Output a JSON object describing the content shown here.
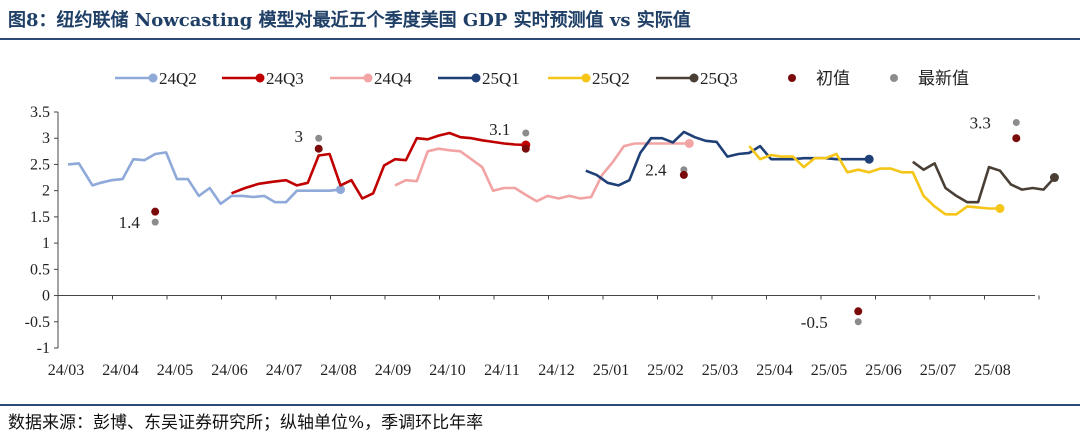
{
  "header": {
    "title": "图8：纽约联储 Nowcasting 模型对最近五个季度美国 GDP 实时预测值 vs 实际值"
  },
  "footer": {
    "source": "数据来源：彭博、东吴证券研究所；纵轴单位%，季调环比年率"
  },
  "chart_data": {
    "type": "line",
    "title": "",
    "xlabel": "",
    "ylabel": "",
    "ylim": [
      -1,
      3.5
    ],
    "yticks": [
      "-1",
      "-0.5",
      "0",
      "0.5",
      "1",
      "1.5",
      "2",
      "2.5",
      "3",
      "3.5"
    ],
    "x_categories": [
      "24/03",
      "24/04",
      "24/05",
      "24/06",
      "24/07",
      "24/08",
      "24/09",
      "24/10",
      "24/11",
      "24/12",
      "25/01",
      "25/02",
      "25/03",
      "25/04",
      "25/05",
      "25/06",
      "25/07",
      "25/08"
    ],
    "grid": false,
    "legend_position": "top",
    "series": [
      {
        "name": "24Q2",
        "color": "#8fa9d9",
        "end_marker": true,
        "x": [
          0,
          0.2,
          0.45,
          0.6,
          0.8,
          1.0,
          1.2,
          1.4,
          1.6,
          1.8,
          2.0,
          2.2,
          2.4,
          2.6,
          2.8,
          3.0,
          3.2,
          3.4,
          3.6,
          3.8,
          4.0,
          4.2,
          4.4,
          4.6,
          4.8,
          5.0
        ],
        "values": [
          2.5,
          2.52,
          2.1,
          2.15,
          2.2,
          2.22,
          2.6,
          2.58,
          2.7,
          2.73,
          2.22,
          2.22,
          1.9,
          2.05,
          1.75,
          1.9,
          1.9,
          1.88,
          1.9,
          1.78,
          1.78,
          2.0,
          2.0,
          2.0,
          2.0,
          2.02
        ]
      },
      {
        "name": "24Q3",
        "color": "#c00000",
        "end_marker": true,
        "x": [
          3.0,
          3.25,
          3.5,
          3.75,
          4.0,
          4.2,
          4.4,
          4.6,
          4.8,
          5.0,
          5.2,
          5.4,
          5.6,
          5.8,
          6.0,
          6.2,
          6.4,
          6.6,
          6.8,
          7.0,
          7.2,
          7.4,
          7.6,
          7.8,
          8.0,
          8.2,
          8.4
        ],
        "values": [
          1.95,
          2.05,
          2.13,
          2.17,
          2.2,
          2.1,
          2.15,
          2.67,
          2.7,
          2.1,
          2.2,
          1.85,
          1.95,
          2.48,
          2.6,
          2.58,
          3.0,
          2.98,
          3.05,
          3.1,
          3.02,
          3.0,
          2.96,
          2.93,
          2.9,
          2.88,
          2.87
        ]
      },
      {
        "name": "24Q4",
        "color": "#f2a3a3",
        "end_marker": true,
        "x": [
          6.0,
          6.2,
          6.4,
          6.6,
          6.8,
          7.0,
          7.2,
          7.4,
          7.6,
          7.8,
          8.0,
          8.2,
          8.4,
          8.6,
          8.8,
          9.0,
          9.2,
          9.4,
          9.6,
          9.8,
          10.0,
          10.2,
          10.4,
          10.6,
          10.8,
          11.0,
          11.2,
          11.4
        ],
        "values": [
          2.1,
          2.2,
          2.18,
          2.75,
          2.8,
          2.77,
          2.75,
          2.6,
          2.45,
          2.0,
          2.05,
          2.05,
          1.92,
          1.8,
          1.9,
          1.85,
          1.9,
          1.85,
          1.88,
          2.3,
          2.55,
          2.85,
          2.9,
          2.9,
          2.9,
          2.9,
          2.9,
          2.9
        ]
      },
      {
        "name": "25Q1",
        "color": "#1f3f77",
        "end_marker": true,
        "x": [
          9.5,
          9.7,
          9.9,
          10.1,
          10.3,
          10.5,
          10.7,
          10.9,
          11.1,
          11.3,
          11.5,
          11.7,
          11.9,
          12.1,
          12.3,
          12.5,
          12.7,
          12.9,
          13.1,
          13.3,
          13.5,
          13.7,
          13.9,
          14.1,
          14.3,
          14.5,
          14.7
        ],
        "values": [
          2.38,
          2.3,
          2.15,
          2.1,
          2.2,
          2.72,
          3.0,
          3.0,
          2.92,
          3.12,
          3.02,
          2.95,
          2.93,
          2.65,
          2.7,
          2.72,
          2.85,
          2.6,
          2.6,
          2.6,
          2.62,
          2.62,
          2.62,
          2.6,
          2.6,
          2.6,
          2.6
        ]
      },
      {
        "name": "25Q2",
        "color": "#f5c518",
        "end_marker": true,
        "x": [
          12.5,
          12.7,
          12.9,
          13.1,
          13.3,
          13.5,
          13.7,
          13.9,
          14.1,
          14.3,
          14.5,
          14.7,
          14.9,
          15.1,
          15.3,
          15.5,
          15.7,
          15.9,
          16.1,
          16.3,
          16.5,
          16.7,
          16.9,
          17.1
        ],
        "values": [
          2.85,
          2.6,
          2.68,
          2.65,
          2.65,
          2.45,
          2.62,
          2.62,
          2.7,
          2.35,
          2.4,
          2.35,
          2.42,
          2.42,
          2.35,
          2.35,
          1.9,
          1.7,
          1.55,
          1.55,
          1.7,
          1.68,
          1.66,
          1.66
        ]
      },
      {
        "name": "25Q3",
        "color": "#4a3f35",
        "end_marker": true,
        "x": [
          15.5,
          15.7,
          15.9,
          16.1,
          16.3,
          16.5,
          16.7,
          16.9,
          17.1,
          17.3,
          17.5,
          17.7,
          17.9,
          18.1
        ],
        "values": [
          2.55,
          2.4,
          2.52,
          2.05,
          1.9,
          1.78,
          1.78,
          2.45,
          2.38,
          2.12,
          2.02,
          2.05,
          2.02,
          2.25
        ]
      }
    ],
    "initial_values": {
      "name": "初值",
      "color": "#7a0a0a",
      "points": [
        {
          "x": 1.6,
          "y": 1.6
        },
        {
          "x": 4.6,
          "y": 2.8
        },
        {
          "x": 8.4,
          "y": 2.8
        },
        {
          "x": 11.3,
          "y": 2.3
        },
        {
          "x": 14.5,
          "y": -0.3
        },
        {
          "x": 17.4,
          "y": 3.0
        }
      ]
    },
    "latest_values": {
      "name": "最新值",
      "color": "#8c8c8c",
      "points": [
        {
          "x": 1.6,
          "y": 1.4
        },
        {
          "x": 4.6,
          "y": 3.0
        },
        {
          "x": 8.4,
          "y": 3.1
        },
        {
          "x": 11.3,
          "y": 2.4
        },
        {
          "x": 14.5,
          "y": -0.5
        },
        {
          "x": 17.4,
          "y": 3.3
        }
      ]
    },
    "annotations": [
      {
        "text": "1.4",
        "x": 1.6,
        "y": 1.4
      },
      {
        "text": "3",
        "x": 4.6,
        "y": 3.0
      },
      {
        "text": "3.1",
        "x": 8.4,
        "y": 3.1
      },
      {
        "text": "2.4",
        "x": 11.3,
        "y": 2.4
      },
      {
        "text": "-0.5",
        "x": 14.5,
        "y": -0.5
      },
      {
        "text": "3.3",
        "x": 17.4,
        "y": 3.3
      }
    ]
  }
}
